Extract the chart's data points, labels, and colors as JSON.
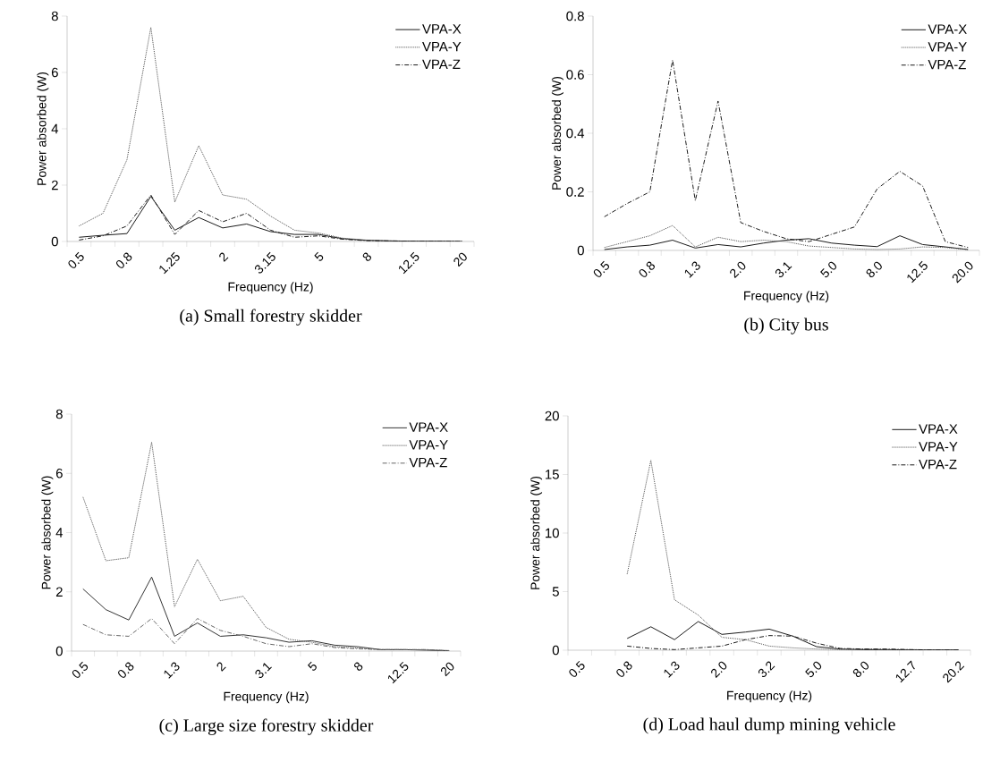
{
  "chart_data": [
    {
      "type": "line",
      "title": "(a) Small forestry skidder",
      "xlabel": "Frequency (Hz)",
      "ylabel": "Power absorbed (W)",
      "categories": [
        "0.5",
        null,
        "0.8",
        null,
        "1.25",
        null,
        "2",
        null,
        "3.15",
        null,
        "5",
        null,
        "8",
        null,
        "12.5",
        null,
        "20"
      ],
      "ylim": [
        0,
        8
      ],
      "yticks": [
        0,
        2,
        4,
        6,
        8
      ],
      "legend": "top right",
      "series": [
        {
          "name": "VPA-X",
          "color": "#1a1a1a",
          "line_style": "solid",
          "values": [
            0.15,
            0.22,
            0.28,
            1.6,
            0.4,
            0.85,
            0.48,
            0.62,
            0.35,
            0.25,
            0.25,
            0.1,
            0.04,
            0.02,
            0.01,
            0.01,
            0
          ]
        },
        {
          "name": "VPA-Y",
          "color": "#4d4d4d",
          "line_style": "dotted",
          "values": [
            0.55,
            1.0,
            2.9,
            7.6,
            1.4,
            3.4,
            1.65,
            1.5,
            0.9,
            0.4,
            0.3,
            0.12,
            0.05,
            0.02,
            0.01,
            0.01,
            0
          ]
        },
        {
          "name": "VPA-Z",
          "color": "#1a1a1a",
          "line_style": "dashdot",
          "values": [
            0.05,
            0.2,
            0.55,
            1.65,
            0.25,
            1.1,
            0.7,
            1.0,
            0.4,
            0.15,
            0.2,
            0.08,
            0.03,
            0.02,
            0.01,
            0.01,
            0
          ]
        }
      ]
    },
    {
      "type": "line",
      "title": "(b) City bus",
      "xlabel": "Frequency (Hz)",
      "ylabel": "Power absorbed (W)",
      "categories": [
        "0.5",
        null,
        "0.8",
        null,
        "1.3",
        null,
        "2.0",
        null,
        "3.1",
        null,
        "5.0",
        null,
        "8.0",
        null,
        "12.5",
        null,
        "20.0"
      ],
      "ylim": [
        0,
        0.8
      ],
      "yticks": [
        0,
        0.2,
        0.4,
        0.6,
        0.8
      ],
      "legend": "top right",
      "series": [
        {
          "name": "VPA-X",
          "color": "#1a1a1a",
          "line_style": "solid",
          "values": [
            0.003,
            0.012,
            0.018,
            0.035,
            0.008,
            0.02,
            0.012,
            0.025,
            0.035,
            0.04,
            0.025,
            0.018,
            0.013,
            0.05,
            0.02,
            0.012,
            0.003
          ]
        },
        {
          "name": "VPA-Y",
          "color": "#4d4d4d",
          "line_style": "dotted",
          "values": [
            0.01,
            0.03,
            0.05,
            0.085,
            0.012,
            0.045,
            0.03,
            0.035,
            0.03,
            0.015,
            0.01,
            0.005,
            0.003,
            0.005,
            0.012,
            0.01,
            0.003
          ]
        },
        {
          "name": "VPA-Z",
          "color": "#1a1a1a",
          "line_style": "dashdot",
          "values": [
            0.115,
            0.16,
            0.2,
            0.65,
            0.17,
            0.51,
            0.095,
            0.065,
            0.04,
            0.03,
            0.055,
            0.08,
            0.21,
            0.27,
            0.22,
            0.03,
            0.01
          ]
        }
      ]
    },
    {
      "type": "line",
      "title": "(c) Large size forestry skidder",
      "xlabel": "Frequency (Hz)",
      "ylabel": "Power absorbed (W)",
      "categories": [
        "0.5",
        null,
        "0.8",
        null,
        "1.3",
        null,
        "2",
        null,
        "3.1",
        null,
        "5",
        null,
        "8",
        null,
        "12.5",
        null,
        "20"
      ],
      "ylim": [
        0,
        8
      ],
      "yticks": [
        0,
        2,
        4,
        6,
        8
      ],
      "legend": "top right",
      "series": [
        {
          "name": "VPA-X",
          "color": "#333333",
          "line_style": "solid",
          "values": [
            2.1,
            1.4,
            1.05,
            2.5,
            0.5,
            0.95,
            0.5,
            0.55,
            0.45,
            0.3,
            0.35,
            0.2,
            0.15,
            0.05,
            0.05,
            0.03,
            0.01
          ]
        },
        {
          "name": "VPA-Y",
          "color": "#4d4d4d",
          "line_style": "dotted",
          "values": [
            5.2,
            3.05,
            3.15,
            7.05,
            1.5,
            3.1,
            1.7,
            1.85,
            0.8,
            0.4,
            0.3,
            0.15,
            0.1,
            0.05,
            0.05,
            0.05,
            0.02
          ]
        },
        {
          "name": "VPA-Z",
          "color": "#666666",
          "line_style": "dashdot",
          "values": [
            0.9,
            0.55,
            0.5,
            1.1,
            0.25,
            1.1,
            0.7,
            0.5,
            0.25,
            0.15,
            0.25,
            0.12,
            0.08,
            0.05,
            0.05,
            0.05,
            0.01
          ]
        }
      ]
    },
    {
      "type": "line",
      "title": "(d) Load haul dump mining vehicle",
      "xlabel": "Frequency (Hz)",
      "ylabel": "Power absorbed (W)",
      "categories": [
        "0.5",
        null,
        "0.8",
        null,
        "1.3",
        null,
        "2.0",
        null,
        "3.2",
        null,
        "5.0",
        null,
        "8.0",
        null,
        "12.7",
        null,
        "20.2"
      ],
      "ylim": [
        0,
        20
      ],
      "yticks": [
        0,
        5,
        10,
        15,
        20
      ],
      "legend": "top right",
      "series": [
        {
          "name": "VPA-X",
          "color": "#1a1a1a",
          "line_style": "solid",
          "values": [
            null,
            null,
            1.0,
            2.0,
            0.9,
            2.45,
            1.35,
            1.55,
            1.8,
            1.2,
            0.3,
            0.1,
            0.05,
            0.05,
            0.02,
            0.02,
            0.02
          ]
        },
        {
          "name": "VPA-Y",
          "color": "#4d4d4d",
          "line_style": "dotted",
          "values": [
            null,
            null,
            6.5,
            16.2,
            4.3,
            3.0,
            1.1,
            0.9,
            0.35,
            0.2,
            0.1,
            0.05,
            0.1,
            0.05,
            0.05,
            0.02,
            0.02
          ]
        },
        {
          "name": "VPA-Z",
          "color": "#1a1a1a",
          "line_style": "dashdot",
          "values": [
            null,
            null,
            0.35,
            0.15,
            0.05,
            0.2,
            0.35,
            0.9,
            1.25,
            1.2,
            0.6,
            0.15,
            0.1,
            0.1,
            0.05,
            0.02,
            0.02
          ]
        }
      ]
    }
  ]
}
